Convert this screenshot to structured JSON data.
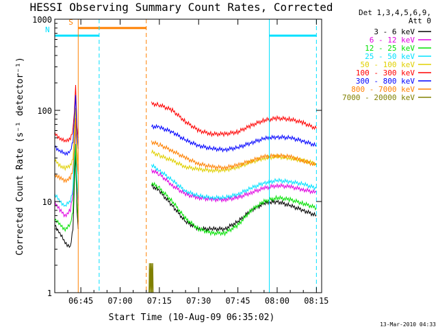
{
  "chart_data": {
    "type": "line",
    "title": "HESSI Observing Summary Count Rates, Corrected",
    "xlabel": "Start Time (10-Aug-09 06:35:02)",
    "ylabel": "Corrected Count Rate (s⁻¹ detector⁻¹)",
    "y_scale": "log",
    "ylim": [
      1,
      1000
    ],
    "y_tick_labels": [
      "1",
      "10",
      "100",
      "1000"
    ],
    "x_tick_labels": [
      "06:45",
      "07:00",
      "07:15",
      "07:30",
      "07:45",
      "08:00",
      "08:15"
    ],
    "x_range": [
      "06:35:02",
      "08:17:00"
    ],
    "legend_header": [
      "Det 1,3,4,5,6,9,",
      "Att 0"
    ],
    "legend_position": "right",
    "footer": "13-Mar-2010 04:33",
    "markers": [
      {
        "label": "S",
        "start": "06:44:00",
        "end": "07:10:00",
        "level": 800,
        "color": "#ff8000"
      },
      {
        "label": "N",
        "start": "06:35:02",
        "end": "06:52:00",
        "level": 660,
        "color": "#00e0ff"
      },
      {
        "label": "",
        "start": "07:57:00",
        "end": "08:15:00",
        "level": 660,
        "color": "#00e0ff"
      }
    ],
    "vlines": [
      {
        "time": "06:44:00",
        "color": "#ff8000",
        "dashed": false
      },
      {
        "time": "06:52:00",
        "color": "#00e0ff",
        "dashed": true
      },
      {
        "time": "07:10:00",
        "color": "#ff8000",
        "dashed": true
      },
      {
        "time": "07:57:00",
        "color": "#00e0ff",
        "dashed": false
      },
      {
        "time": "08:15:00",
        "color": "#00e0ff",
        "dashed": true
      }
    ],
    "series": [
      {
        "name": "3 - 6 keV",
        "color": "#000000",
        "segments": [
          [
            [
              "06:35:02",
              5.5
            ],
            [
              "06:37:00",
              4.5
            ],
            [
              "06:39:00",
              3.5
            ],
            [
              "06:41:00",
              3.2
            ],
            [
              "06:42:00",
              5
            ],
            [
              "06:42:30",
              15
            ],
            [
              "06:43:00",
              35
            ],
            [
              "06:43:30",
              8
            ],
            [
              "06:44:00",
              5
            ]
          ],
          [
            [
              "07:12:00",
              15
            ],
            [
              "07:15:00",
              13
            ],
            [
              "07:20:00",
              9
            ],
            [
              "07:25:00",
              6
            ],
            [
              "07:30:00",
              5
            ],
            [
              "07:35:00",
              5
            ],
            [
              "07:40:00",
              5
            ],
            [
              "07:45:00",
              6
            ],
            [
              "07:50:00",
              8
            ],
            [
              "07:55:00",
              9.5
            ],
            [
              "08:00:00",
              10
            ],
            [
              "08:05:00",
              9
            ],
            [
              "08:10:00",
              8
            ],
            [
              "08:15:00",
              7
            ]
          ]
        ]
      },
      {
        "name": "6 - 12 keV",
        "color": "#e000e0",
        "segments": [
          [
            [
              "06:35:02",
              10
            ],
            [
              "06:37:00",
              8
            ],
            [
              "06:39:00",
              7
            ],
            [
              "06:41:00",
              8
            ],
            [
              "06:42:00",
              12
            ],
            [
              "06:42:30",
              30
            ],
            [
              "06:43:00",
              70
            ],
            [
              "06:43:30",
              15
            ],
            [
              "06:44:00",
              9
            ]
          ],
          [
            [
              "07:12:00",
              22
            ],
            [
              "07:15:00",
              20
            ],
            [
              "07:20:00",
              15
            ],
            [
              "07:25:00",
              12
            ],
            [
              "07:30:00",
              11
            ],
            [
              "07:35:00",
              10.5
            ],
            [
              "07:40:00",
              10.5
            ],
            [
              "07:45:00",
              11
            ],
            [
              "07:50:00",
              12.5
            ],
            [
              "07:55:00",
              14
            ],
            [
              "08:00:00",
              15
            ],
            [
              "08:05:00",
              14.5
            ],
            [
              "08:10:00",
              13.5
            ],
            [
              "08:15:00",
              12.5
            ]
          ]
        ]
      },
      {
        "name": "12 - 25 keV",
        "color": "#00e000",
        "segments": [
          [
            [
              "06:35:02",
              6.5
            ],
            [
              "06:37:00",
              5.5
            ],
            [
              "06:39:00",
              5
            ],
            [
              "06:41:00",
              5.5
            ],
            [
              "06:42:00",
              8
            ],
            [
              "06:42:30",
              20
            ],
            [
              "06:43:00",
              45
            ],
            [
              "06:43:30",
              10
            ],
            [
              "06:44:00",
              6
            ]
          ],
          [
            [
              "07:12:00",
              16
            ],
            [
              "07:15:00",
              14
            ],
            [
              "07:20:00",
              10
            ],
            [
              "07:25:00",
              6.5
            ],
            [
              "07:30:00",
              5
            ],
            [
              "07:35:00",
              4.5
            ],
            [
              "07:40:00",
              4.5
            ],
            [
              "07:45:00",
              5.5
            ],
            [
              "07:50:00",
              8
            ],
            [
              "07:55:00",
              10
            ],
            [
              "08:00:00",
              11
            ],
            [
              "08:05:00",
              10.5
            ],
            [
              "08:10:00",
              9.5
            ],
            [
              "08:15:00",
              8.5
            ]
          ]
        ]
      },
      {
        "name": "25 - 50 keV",
        "color": "#00e0ff",
        "segments": [
          [
            [
              "06:35:02",
              12
            ],
            [
              "06:37:00",
              10
            ],
            [
              "06:39:00",
              9
            ],
            [
              "06:41:00",
              10
            ],
            [
              "06:42:00",
              14
            ],
            [
              "06:42:30",
              35
            ],
            [
              "06:43:00",
              80
            ],
            [
              "06:43:30",
              18
            ],
            [
              "06:44:00",
              11
            ]
          ],
          [
            [
              "07:12:00",
              25
            ],
            [
              "07:15:00",
              22
            ],
            [
              "07:20:00",
              17
            ],
            [
              "07:25:00",
              13
            ],
            [
              "07:30:00",
              11.5
            ],
            [
              "07:35:00",
              11
            ],
            [
              "07:40:00",
              11
            ],
            [
              "07:45:00",
              12
            ],
            [
              "07:50:00",
              14
            ],
            [
              "07:55:00",
              16
            ],
            [
              "08:00:00",
              17
            ],
            [
              "08:05:00",
              16.5
            ],
            [
              "08:10:00",
              15.5
            ],
            [
              "08:15:00",
              14
            ]
          ]
        ]
      },
      {
        "name": "50 - 100 keV",
        "color": "#e0d000",
        "segments": [
          [
            [
              "06:35:02",
              28
            ],
            [
              "06:37:00",
              25
            ],
            [
              "06:39:00",
              23
            ],
            [
              "06:41:00",
              25
            ],
            [
              "06:42:00",
              30
            ],
            [
              "06:42:30",
              55
            ],
            [
              "06:43:00",
              110
            ],
            [
              "06:43:30",
              35
            ],
            [
              "06:44:00",
              25
            ]
          ],
          [
            [
              "07:12:00",
              35
            ],
            [
              "07:15:00",
              32
            ],
            [
              "07:20:00",
              28
            ],
            [
              "07:25:00",
              24
            ],
            [
              "07:30:00",
              22.5
            ],
            [
              "07:35:00",
              22
            ],
            [
              "07:40:00",
              22
            ],
            [
              "07:45:00",
              24
            ],
            [
              "07:50:00",
              27
            ],
            [
              "07:55:00",
              30
            ],
            [
              "08:00:00",
              31
            ],
            [
              "08:05:00",
              30
            ],
            [
              "08:10:00",
              28
            ],
            [
              "08:15:00",
              26
            ]
          ]
        ]
      },
      {
        "name": "100 - 300 keV",
        "color": "#ff0000",
        "segments": [
          [
            [
              "06:35:02",
              55
            ],
            [
              "06:37:00",
              50
            ],
            [
              "06:39:00",
              45
            ],
            [
              "06:41:00",
              50
            ],
            [
              "06:42:00",
              60
            ],
            [
              "06:42:30",
              100
            ],
            [
              "06:43:00",
              180
            ],
            [
              "06:43:30",
              70
            ],
            [
              "06:44:00",
              50
            ]
          ],
          [
            [
              "07:12:00",
              118
            ],
            [
              "07:15:00",
              115
            ],
            [
              "07:20:00",
              100
            ],
            [
              "07:25:00",
              75
            ],
            [
              "07:30:00",
              60
            ],
            [
              "07:35:00",
              55
            ],
            [
              "07:40:00",
              55
            ],
            [
              "07:45:00",
              58
            ],
            [
              "07:50:00",
              68
            ],
            [
              "07:55:00",
              78
            ],
            [
              "08:00:00",
              82
            ],
            [
              "08:05:00",
              80
            ],
            [
              "08:10:00",
              73
            ],
            [
              "08:15:00",
              63
            ]
          ]
        ]
      },
      {
        "name": "300 - 800 keV",
        "color": "#0000ff",
        "segments": [
          [
            [
              "06:35:02",
              40
            ],
            [
              "06:37:00",
              36
            ],
            [
              "06:39:00",
              33
            ],
            [
              "06:41:00",
              36
            ],
            [
              "06:42:00",
              45
            ],
            [
              "06:42:30",
              80
            ],
            [
              "06:43:00",
              150
            ],
            [
              "06:43:30",
              55
            ],
            [
              "06:44:00",
              38
            ]
          ],
          [
            [
              "07:12:00",
              67
            ],
            [
              "07:15:00",
              65
            ],
            [
              "07:20:00",
              58
            ],
            [
              "07:25:00",
              47
            ],
            [
              "07:30:00",
              41
            ],
            [
              "07:35:00",
              38
            ],
            [
              "07:40:00",
              37
            ],
            [
              "07:45:00",
              39
            ],
            [
              "07:50:00",
              44
            ],
            [
              "07:55:00",
              49
            ],
            [
              "08:00:00",
              51
            ],
            [
              "08:05:00",
              50
            ],
            [
              "08:10:00",
              46
            ],
            [
              "08:15:00",
              41
            ]
          ]
        ]
      },
      {
        "name": "800 - 7000 keV",
        "color": "#ff8000",
        "segments": [
          [
            [
              "06:35:02",
              20
            ],
            [
              "06:37:00",
              18
            ],
            [
              "06:39:00",
              17
            ],
            [
              "06:41:00",
              18
            ],
            [
              "06:42:00",
              22
            ],
            [
              "06:42:30",
              40
            ],
            [
              "06:43:00",
              80
            ],
            [
              "06:43:30",
              28
            ],
            [
              "06:44:00",
              20
            ]
          ],
          [
            [
              "07:12:00",
              45
            ],
            [
              "07:15:00",
              42
            ],
            [
              "07:20:00",
              36
            ],
            [
              "07:25:00",
              30
            ],
            [
              "07:30:00",
              26
            ],
            [
              "07:35:00",
              24
            ],
            [
              "07:40:00",
              23.5
            ],
            [
              "07:45:00",
              25
            ],
            [
              "07:50:00",
              28
            ],
            [
              "07:55:00",
              31
            ],
            [
              "08:00:00",
              32
            ],
            [
              "08:05:00",
              31
            ],
            [
              "08:10:00",
              28
            ],
            [
              "08:15:00",
              25
            ]
          ]
        ]
      },
      {
        "name": "7000 - 20000 keV",
        "color": "#808000",
        "segments": [
          [
            [
              "07:11:00",
              1
            ],
            [
              "07:11:10",
              2
            ],
            [
              "07:11:20",
              1
            ],
            [
              "07:11:30",
              2
            ],
            [
              "07:11:40",
              1
            ],
            [
              "07:11:50",
              2
            ],
            [
              "07:12:00",
              1
            ],
            [
              "07:12:10",
              2
            ],
            [
              "07:12:20",
              1
            ],
            [
              "07:12:30",
              2
            ],
            [
              "07:12:40",
              1
            ]
          ]
        ]
      }
    ]
  }
}
